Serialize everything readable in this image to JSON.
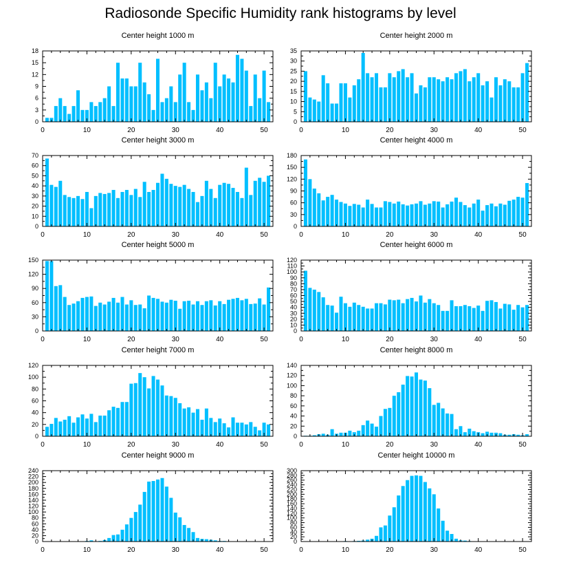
{
  "title": "Radiosonde Specific Humidity rank histograms by level",
  "colors": {
    "bar": "#00BFFF",
    "axis": "#000000",
    "background": "#FFFFFF"
  },
  "chart_data": [
    {
      "type": "bar",
      "title": "Center height 1000 m",
      "xlabel": "",
      "ylabel": "",
      "xlim": [
        0,
        52
      ],
      "ylim": [
        0,
        18
      ],
      "xticks": [
        0,
        10,
        20,
        30,
        40,
        50
      ],
      "yticks": [
        0,
        3,
        6,
        9,
        12,
        15,
        18
      ],
      "x": [
        1,
        2,
        3,
        4,
        5,
        6,
        7,
        8,
        9,
        10,
        11,
        12,
        13,
        14,
        15,
        16,
        17,
        18,
        19,
        20,
        21,
        22,
        23,
        24,
        25,
        26,
        27,
        28,
        29,
        30,
        31,
        32,
        33,
        34,
        35,
        36,
        37,
        38,
        39,
        40,
        41,
        42,
        43,
        44,
        45,
        46,
        47,
        48,
        49,
        50,
        51
      ],
      "values": [
        1,
        1,
        4,
        6,
        4,
        2,
        4,
        8,
        3,
        3,
        5,
        4,
        5,
        6,
        9,
        4,
        15,
        11,
        11,
        9,
        9,
        15,
        10,
        7,
        3,
        16,
        5,
        6,
        9,
        5,
        12,
        15,
        5,
        3,
        12,
        8,
        10,
        6,
        15,
        9,
        12,
        11,
        10,
        17,
        16,
        13,
        4,
        12,
        6,
        13,
        5
      ]
    },
    {
      "type": "bar",
      "title": "Center height 2000 m",
      "xlabel": "",
      "ylabel": "",
      "xlim": [
        0,
        52
      ],
      "ylim": [
        0,
        35
      ],
      "xticks": [
        0,
        10,
        20,
        30,
        40,
        50
      ],
      "yticks": [
        0,
        5,
        10,
        15,
        20,
        25,
        30,
        35
      ],
      "x": [
        1,
        2,
        3,
        4,
        5,
        6,
        7,
        8,
        9,
        10,
        11,
        12,
        13,
        14,
        15,
        16,
        17,
        18,
        19,
        20,
        21,
        22,
        23,
        24,
        25,
        26,
        27,
        28,
        29,
        30,
        31,
        32,
        33,
        34,
        35,
        36,
        37,
        38,
        39,
        40,
        41,
        42,
        43,
        44,
        45,
        46,
        47,
        48,
        49,
        50,
        51
      ],
      "values": [
        25,
        12,
        11,
        10,
        23,
        19,
        9,
        9,
        19,
        19,
        12,
        18,
        21,
        34,
        24,
        22,
        24,
        17,
        17,
        24,
        22,
        25,
        26,
        22,
        24,
        14,
        18,
        17,
        22,
        22,
        21,
        20,
        22,
        21,
        24,
        25,
        26,
        20,
        22,
        24,
        18,
        20,
        12,
        22,
        18,
        21,
        20,
        17,
        17,
        24,
        29
      ]
    },
    {
      "type": "bar",
      "title": "Center height 3000 m",
      "xlabel": "",
      "ylabel": "",
      "xlim": [
        0,
        52
      ],
      "ylim": [
        0,
        70
      ],
      "xticks": [
        0,
        10,
        20,
        30,
        40,
        50
      ],
      "yticks": [
        0,
        10,
        20,
        30,
        40,
        50,
        60,
        70
      ],
      "x": [
        1,
        2,
        3,
        4,
        5,
        6,
        7,
        8,
        9,
        10,
        11,
        12,
        13,
        14,
        15,
        16,
        17,
        18,
        19,
        20,
        21,
        22,
        23,
        24,
        25,
        26,
        27,
        28,
        29,
        30,
        31,
        32,
        33,
        34,
        35,
        36,
        37,
        38,
        39,
        40,
        41,
        42,
        43,
        44,
        45,
        46,
        47,
        48,
        49,
        50,
        51
      ],
      "values": [
        67,
        41,
        39,
        45,
        31,
        29,
        28,
        30,
        27,
        34,
        18,
        30,
        33,
        32,
        33,
        36,
        28,
        34,
        36,
        31,
        37,
        29,
        44,
        34,
        36,
        43,
        52,
        47,
        42,
        40,
        39,
        41,
        37,
        34,
        24,
        30,
        45,
        37,
        28,
        41,
        43,
        42,
        38,
        34,
        28,
        58,
        31,
        45,
        48,
        44,
        50
      ]
    },
    {
      "type": "bar",
      "title": "Center height 4000 m",
      "xlabel": "",
      "ylabel": "",
      "xlim": [
        0,
        52
      ],
      "ylim": [
        0,
        180
      ],
      "xticks": [
        0,
        10,
        20,
        30,
        40,
        50
      ],
      "yticks": [
        0,
        30,
        60,
        90,
        120,
        150,
        180
      ],
      "x": [
        1,
        2,
        3,
        4,
        5,
        6,
        7,
        8,
        9,
        10,
        11,
        12,
        13,
        14,
        15,
        16,
        17,
        18,
        19,
        20,
        21,
        22,
        23,
        24,
        25,
        26,
        27,
        28,
        29,
        30,
        31,
        32,
        33,
        34,
        35,
        36,
        37,
        38,
        39,
        40,
        41,
        42,
        43,
        44,
        45,
        46,
        47,
        48,
        49,
        50,
        51
      ],
      "values": [
        170,
        120,
        96,
        84,
        66,
        75,
        80,
        68,
        62,
        58,
        52,
        57,
        55,
        48,
        68,
        57,
        48,
        48,
        64,
        62,
        58,
        63,
        56,
        53,
        56,
        58,
        64,
        55,
        58,
        64,
        63,
        48,
        56,
        63,
        73,
        62,
        54,
        48,
        58,
        68,
        40,
        54,
        58,
        51,
        58,
        55,
        65,
        68,
        75,
        73,
        110
      ]
    },
    {
      "type": "bar",
      "title": "Center height 5000 m",
      "xlabel": "",
      "ylabel": "",
      "xlim": [
        0,
        52
      ],
      "ylim": [
        0,
        150
      ],
      "xticks": [
        0,
        10,
        20,
        30,
        40,
        50
      ],
      "yticks": [
        0,
        30,
        60,
        90,
        120,
        150
      ],
      "x": [
        1,
        2,
        3,
        4,
        5,
        6,
        7,
        8,
        9,
        10,
        11,
        12,
        13,
        14,
        15,
        16,
        17,
        18,
        19,
        20,
        21,
        22,
        23,
        24,
        25,
        26,
        27,
        28,
        29,
        30,
        31,
        32,
        33,
        34,
        35,
        36,
        37,
        38,
        39,
        40,
        41,
        42,
        43,
        44,
        45,
        46,
        47,
        48,
        49,
        50,
        51
      ],
      "values": [
        148,
        148,
        95,
        97,
        72,
        55,
        58,
        63,
        70,
        72,
        73,
        53,
        60,
        56,
        62,
        70,
        60,
        72,
        56,
        65,
        55,
        56,
        48,
        75,
        70,
        68,
        62,
        60,
        66,
        64,
        47,
        63,
        64,
        56,
        63,
        55,
        63,
        65,
        54,
        63,
        57,
        66,
        68,
        70,
        65,
        68,
        57,
        58,
        69,
        56,
        92
      ]
    },
    {
      "type": "bar",
      "title": "Center height 6000 m",
      "xlabel": "",
      "ylabel": "",
      "xlim": [
        0,
        52
      ],
      "ylim": [
        0,
        120
      ],
      "xticks": [
        0,
        10,
        20,
        30,
        40,
        50
      ],
      "yticks": [
        0,
        10,
        20,
        30,
        40,
        50,
        60,
        70,
        80,
        90,
        100,
        110,
        120
      ],
      "x": [
        1,
        2,
        3,
        4,
        5,
        6,
        7,
        8,
        9,
        10,
        11,
        12,
        13,
        14,
        15,
        16,
        17,
        18,
        19,
        20,
        21,
        22,
        23,
        24,
        25,
        26,
        27,
        28,
        29,
        30,
        31,
        32,
        33,
        34,
        35,
        36,
        37,
        38,
        39,
        40,
        41,
        42,
        43,
        44,
        45,
        46,
        47,
        48,
        49,
        50,
        51
      ],
      "values": [
        102,
        73,
        70,
        66,
        57,
        44,
        43,
        31,
        58,
        47,
        41,
        48,
        44,
        41,
        38,
        38,
        47,
        47,
        45,
        53,
        52,
        53,
        47,
        54,
        56,
        50,
        60,
        48,
        54,
        47,
        44,
        34,
        34,
        52,
        42,
        42,
        44,
        42,
        39,
        43,
        34,
        51,
        52,
        49,
        38,
        46,
        45,
        36,
        44,
        40,
        44
      ]
    },
    {
      "type": "bar",
      "title": "Center height 7000 m",
      "xlabel": "",
      "ylabel": "",
      "xlim": [
        0,
        52
      ],
      "ylim": [
        0,
        120
      ],
      "xticks": [
        0,
        10,
        20,
        30,
        40,
        50
      ],
      "yticks": [
        0,
        20,
        40,
        60,
        80,
        100,
        120
      ],
      "x": [
        1,
        2,
        3,
        4,
        5,
        6,
        7,
        8,
        9,
        10,
        11,
        12,
        13,
        14,
        15,
        16,
        17,
        18,
        19,
        20,
        21,
        22,
        23,
        24,
        25,
        26,
        27,
        28,
        29,
        30,
        31,
        32,
        33,
        34,
        35,
        36,
        37,
        38,
        39,
        40,
        41,
        42,
        43,
        44,
        45,
        46,
        47,
        48,
        49,
        50,
        51
      ],
      "values": [
        16,
        21,
        31,
        25,
        28,
        34,
        23,
        32,
        37,
        30,
        38,
        24,
        35,
        35,
        44,
        50,
        48,
        58,
        58,
        89,
        90,
        107,
        100,
        81,
        102,
        96,
        86,
        69,
        68,
        65,
        56,
        47,
        49,
        40,
        46,
        28,
        47,
        31,
        24,
        30,
        22,
        15,
        32,
        23,
        23,
        20,
        24,
        16,
        10,
        23,
        20
      ]
    },
    {
      "type": "bar",
      "title": "Center height 8000 m",
      "xlabel": "",
      "ylabel": "",
      "xlim": [
        0,
        52
      ],
      "ylim": [
        0,
        140
      ],
      "xticks": [
        0,
        10,
        20,
        30,
        40,
        50
      ],
      "yticks": [
        0,
        20,
        40,
        60,
        80,
        100,
        120,
        140
      ],
      "x": [
        1,
        2,
        3,
        4,
        5,
        6,
        7,
        8,
        9,
        10,
        11,
        12,
        13,
        14,
        15,
        16,
        17,
        18,
        19,
        20,
        21,
        22,
        23,
        24,
        25,
        26,
        27,
        28,
        29,
        30,
        31,
        32,
        33,
        34,
        35,
        36,
        37,
        38,
        39,
        40,
        41,
        42,
        43,
        44,
        45,
        46,
        47,
        48,
        49,
        50,
        51
      ],
      "values": [
        1,
        1,
        2,
        4,
        5,
        3,
        14,
        5,
        7,
        7,
        11,
        8,
        11,
        22,
        31,
        25,
        19,
        40,
        54,
        56,
        80,
        87,
        102,
        119,
        118,
        126,
        112,
        110,
        95,
        62,
        66,
        55,
        45,
        44,
        14,
        20,
        8,
        15,
        10,
        8,
        6,
        9,
        7,
        7,
        6,
        3,
        3,
        4,
        3,
        2,
        4
      ]
    },
    {
      "type": "bar",
      "title": "Center height 9000 m",
      "xlabel": "",
      "ylabel": "",
      "xlim": [
        0,
        52
      ],
      "ylim": [
        0,
        240
      ],
      "xticks": [
        0,
        10,
        20,
        30,
        40,
        50
      ],
      "yticks": [
        0,
        20,
        40,
        60,
        80,
        100,
        120,
        140,
        160,
        180,
        200,
        220,
        240
      ],
      "x": [
        1,
        2,
        3,
        4,
        5,
        6,
        7,
        8,
        9,
        10,
        11,
        12,
        13,
        14,
        15,
        16,
        17,
        18,
        19,
        20,
        21,
        22,
        23,
        24,
        25,
        26,
        27,
        28,
        29,
        30,
        31,
        32,
        33,
        34,
        35,
        36,
        37,
        38,
        39,
        40,
        41,
        42,
        43,
        44,
        45,
        46,
        47,
        48,
        49,
        50,
        51
      ],
      "values": [
        0,
        0,
        0,
        0,
        0,
        0,
        1,
        0,
        1,
        2,
        4,
        1,
        2,
        5,
        12,
        22,
        24,
        40,
        58,
        80,
        100,
        125,
        168,
        203,
        205,
        210,
        215,
        186,
        148,
        98,
        82,
        56,
        46,
        32,
        12,
        9,
        8,
        6,
        4,
        2,
        2,
        1,
        1,
        0,
        1,
        0,
        0,
        0,
        0,
        0,
        0
      ]
    },
    {
      "type": "bar",
      "title": "Center height 10000 m",
      "xlabel": "",
      "ylabel": "",
      "xlim": [
        0,
        52
      ],
      "ylim": [
        0,
        300
      ],
      "xticks": [
        0,
        10,
        20,
        30,
        40,
        50
      ],
      "yticks": [
        0,
        20,
        40,
        60,
        80,
        100,
        120,
        140,
        160,
        180,
        200,
        220,
        240,
        260,
        280,
        300
      ],
      "x": [
        1,
        2,
        3,
        4,
        5,
        6,
        7,
        8,
        9,
        10,
        11,
        12,
        13,
        14,
        15,
        16,
        17,
        18,
        19,
        20,
        21,
        22,
        23,
        24,
        25,
        26,
        27,
        28,
        29,
        30,
        31,
        32,
        33,
        34,
        35,
        36,
        37,
        38,
        39,
        40,
        41,
        42,
        43,
        44,
        45,
        46,
        47,
        48,
        49,
        50,
        51
      ],
      "values": [
        0,
        0,
        0,
        0,
        0,
        0,
        0,
        0,
        1,
        2,
        1,
        2,
        3,
        4,
        8,
        12,
        24,
        60,
        68,
        110,
        145,
        195,
        235,
        260,
        278,
        280,
        278,
        252,
        225,
        200,
        140,
        88,
        46,
        32,
        12,
        5,
        4,
        2,
        1,
        0,
        0,
        0,
        0,
        0,
        0,
        0,
        0,
        0,
        0,
        0,
        0
      ]
    }
  ]
}
